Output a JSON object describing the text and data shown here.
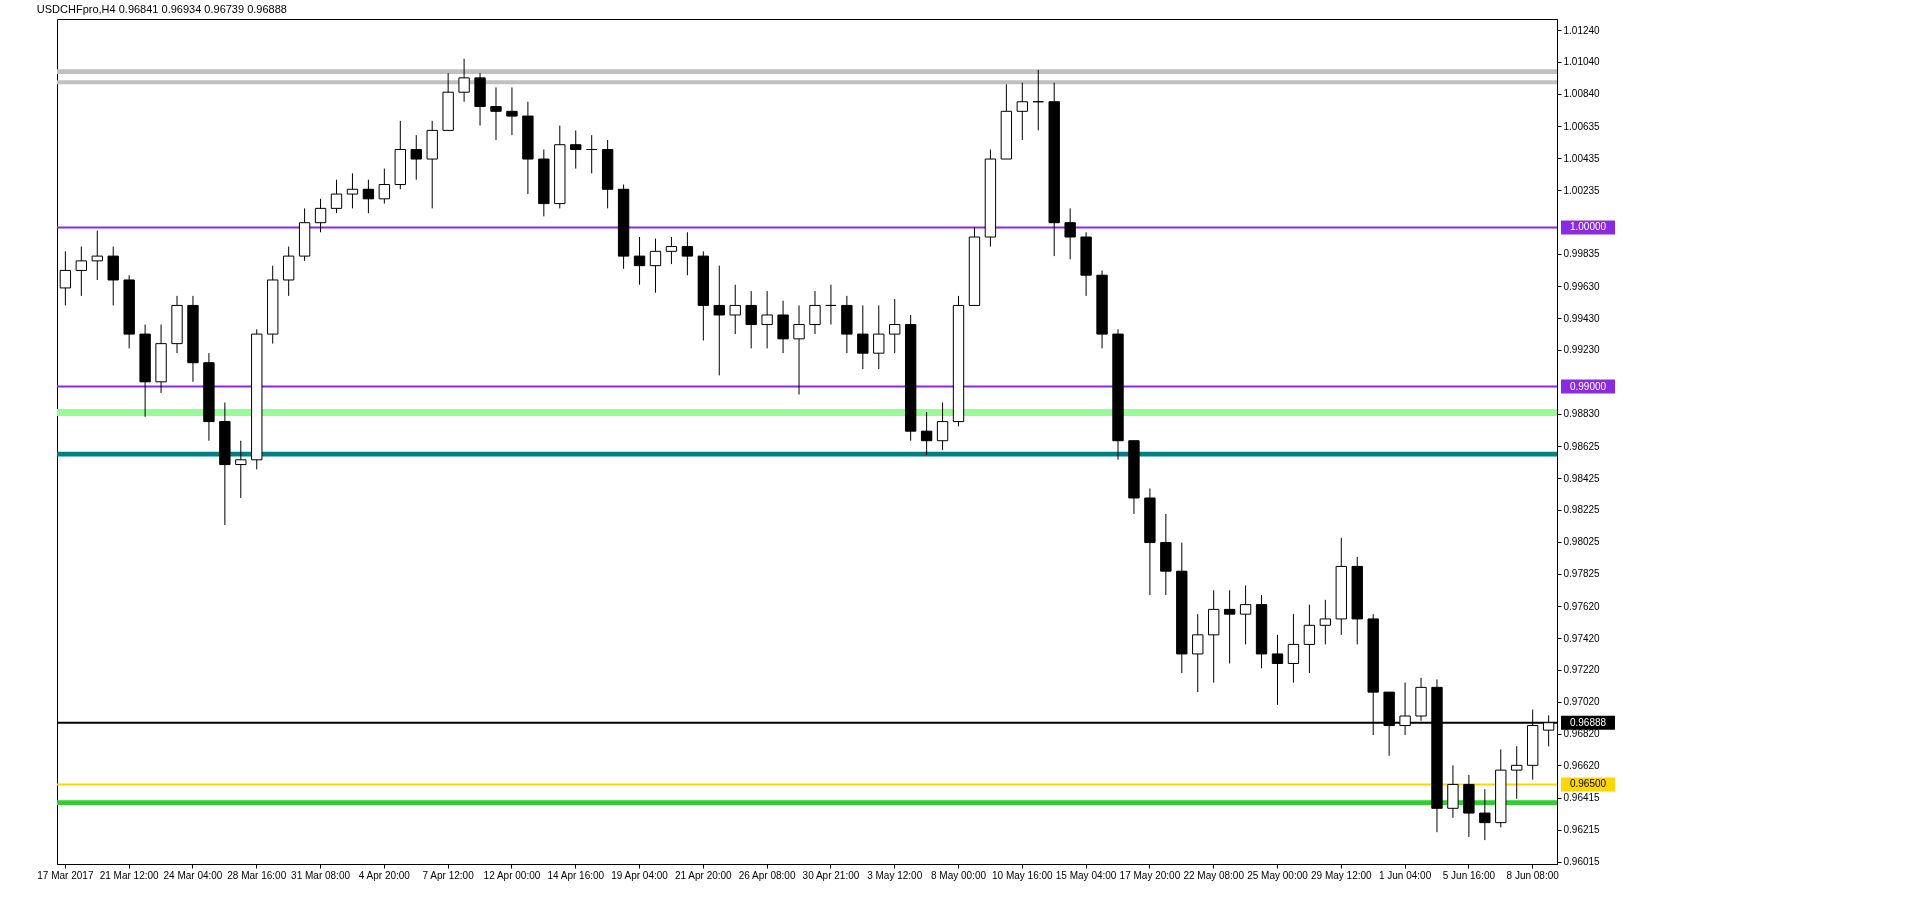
{
  "chart_data": {
    "type": "candlestick",
    "title": "USDCHFpro,H4  0.96841 0.96934 0.96739 0.96888",
    "categories": [
      "17 Mar 2017",
      null,
      null,
      null,
      "21 Mar 12:00",
      null,
      null,
      null,
      "24 Mar 04:00",
      null,
      null,
      null,
      "28 Mar 16:00",
      null,
      null,
      null,
      "31 Mar 08:00",
      null,
      null,
      null,
      "4 Apr 20:00",
      null,
      null,
      null,
      "7 Apr 12:00",
      null,
      null,
      null,
      "12 Apr 00:00",
      null,
      null,
      null,
      "14 Apr 16:00",
      null,
      null,
      null,
      "19 Apr 04:00",
      null,
      null,
      null,
      "21 Apr 20:00",
      null,
      null,
      null,
      "26 Apr 08:00",
      null,
      null,
      null,
      "30 Apr 21:00",
      null,
      null,
      null,
      "3 May 12:00",
      null,
      null,
      null,
      "8 May 00:00",
      null,
      null,
      null,
      "10 May 16:00",
      null,
      null,
      null,
      "15 May 04:00",
      null,
      null,
      null,
      "17 May 20:00",
      null,
      null,
      null,
      "22 May 08:00",
      null,
      null,
      null,
      "25 May 00:00",
      null,
      null,
      null,
      "29 May 12:00",
      null,
      null,
      null,
      "1 Jun 04:00",
      null,
      null,
      null,
      "5 Jun 16:00",
      null,
      null,
      null,
      "8 Jun 08:00",
      null
    ],
    "ohlc": [
      [
        0.9962,
        0.9985,
        0.9951,
        0.9973
      ],
      [
        0.9973,
        0.9988,
        0.9957,
        0.9979
      ],
      [
        0.9979,
        0.9998,
        0.9967,
        0.9982
      ],
      [
        0.9982,
        0.9988,
        0.9951,
        0.9967
      ],
      [
        0.9967,
        0.997,
        0.9924,
        0.9933
      ],
      [
        0.9933,
        0.9939,
        0.9881,
        0.9903
      ],
      [
        0.9903,
        0.9939,
        0.9896,
        0.9927
      ],
      [
        0.9927,
        0.9957,
        0.9921,
        0.9951
      ],
      [
        0.9951,
        0.9957,
        0.9903,
        0.9915
      ],
      [
        0.9915,
        0.9921,
        0.9866,
        0.9878
      ],
      [
        0.9878,
        0.989,
        0.9813,
        0.9851
      ],
      [
        0.9851,
        0.9866,
        0.983,
        0.9854
      ],
      [
        0.9854,
        0.9936,
        0.9848,
        0.9933
      ],
      [
        0.9933,
        0.9976,
        0.9927,
        0.9967
      ],
      [
        0.9967,
        0.9988,
        0.9957,
        0.9982
      ],
      [
        0.9982,
        1.0012,
        0.9979,
        1.0003
      ],
      [
        1.0003,
        1.0018,
        0.9997,
        1.0012
      ],
      [
        1.0012,
        1.003,
        1.0009,
        1.0021
      ],
      [
        1.0021,
        1.0034,
        1.0012,
        1.0024
      ],
      [
        1.0024,
        1.003,
        1.0009,
        1.0018
      ],
      [
        1.0018,
        1.0037,
        1.0015,
        1.0027
      ],
      [
        1.0027,
        1.0067,
        1.0024,
        1.0049
      ],
      [
        1.0049,
        1.0058,
        1.003,
        1.0043
      ],
      [
        1.0043,
        1.0067,
        1.0012,
        1.0061
      ],
      [
        1.0061,
        1.0097,
        1.0061,
        1.0085
      ],
      [
        1.0085,
        1.0106,
        1.0079,
        1.0094
      ],
      [
        1.0094,
        1.0097,
        1.0064,
        1.0076
      ],
      [
        1.0076,
        1.0088,
        1.0055,
        1.0073
      ],
      [
        1.0073,
        1.0088,
        1.0058,
        1.007
      ],
      [
        1.007,
        1.0079,
        1.0021,
        1.0043
      ],
      [
        1.0043,
        1.0049,
        1.0007,
        1.0015
      ],
      [
        1.0015,
        1.0064,
        1.0012,
        1.0052
      ],
      [
        1.0052,
        1.0061,
        1.0037,
        1.0049
      ],
      [
        1.0049,
        1.0058,
        1.0034,
        1.0049
      ],
      [
        1.0049,
        1.0055,
        1.0012,
        1.0024
      ],
      [
        1.0024,
        1.0027,
        0.9974,
        0.9982
      ],
      [
        0.9982,
        0.9994,
        0.9964,
        0.9976
      ],
      [
        0.9976,
        0.9993,
        0.9959,
        0.9985
      ],
      [
        0.9985,
        0.9994,
        0.9977,
        0.9988
      ],
      [
        0.9988,
        0.9997,
        0.997,
        0.9982
      ],
      [
        0.9982,
        0.9985,
        0.9929,
        0.9951
      ],
      [
        0.9951,
        0.9976,
        0.9907,
        0.9945
      ],
      [
        0.9945,
        0.9964,
        0.9933,
        0.9951
      ],
      [
        0.9951,
        0.996,
        0.9924,
        0.9939
      ],
      [
        0.9939,
        0.996,
        0.9924,
        0.9945
      ],
      [
        0.9945,
        0.9954,
        0.9921,
        0.993
      ],
      [
        0.993,
        0.9951,
        0.9895,
        0.9939
      ],
      [
        0.9939,
        0.996,
        0.9933,
        0.9951
      ],
      [
        0.9951,
        0.9964,
        0.9939,
        0.9951
      ],
      [
        0.9951,
        0.9957,
        0.9921,
        0.9933
      ],
      [
        0.9933,
        0.9951,
        0.9911,
        0.9921
      ],
      [
        0.9921,
        0.9951,
        0.9911,
        0.9933
      ],
      [
        0.9933,
        0.9955,
        0.9921,
        0.9939
      ],
      [
        0.9939,
        0.9945,
        0.9866,
        0.9872
      ],
      [
        0.9872,
        0.9884,
        0.9857,
        0.9866
      ],
      [
        0.9866,
        0.989,
        0.986,
        0.9878
      ],
      [
        0.9878,
        0.9957,
        0.9875,
        0.9951
      ],
      [
        0.9951,
        1.0,
        0.9951,
        0.9994
      ],
      [
        0.9994,
        1.0049,
        0.9988,
        1.0043
      ],
      [
        1.0043,
        1.009,
        1.0043,
        1.0073
      ],
      [
        1.0073,
        1.0091,
        1.0055,
        1.0079
      ],
      [
        1.0079,
        1.0099,
        1.0061,
        1.0079
      ],
      [
        1.0079,
        1.0091,
        0.9982,
        1.0003
      ],
      [
        1.0003,
        1.0012,
        0.998,
        0.9994
      ],
      [
        0.9994,
        0.9997,
        0.9957,
        0.997
      ],
      [
        0.997,
        0.9973,
        0.9924,
        0.9933
      ],
      [
        0.9933,
        0.9936,
        0.9854,
        0.9866
      ],
      [
        0.9866,
        0.9866,
        0.982,
        0.983
      ],
      [
        0.983,
        0.9836,
        0.9769,
        0.9802
      ],
      [
        0.9802,
        0.982,
        0.9769,
        0.9784
      ],
      [
        0.9784,
        0.9802,
        0.972,
        0.9732
      ],
      [
        0.9732,
        0.9757,
        0.9708,
        0.9744
      ],
      [
        0.9744,
        0.9772,
        0.9714,
        0.976
      ],
      [
        0.976,
        0.9772,
        0.9726,
        0.9757
      ],
      [
        0.9757,
        0.9775,
        0.9738,
        0.9763
      ],
      [
        0.9763,
        0.9769,
        0.9723,
        0.9732
      ],
      [
        0.9732,
        0.9744,
        0.97,
        0.9726
      ],
      [
        0.9726,
        0.9757,
        0.9714,
        0.9738
      ],
      [
        0.9738,
        0.9763,
        0.972,
        0.975
      ],
      [
        0.975,
        0.9766,
        0.9738,
        0.9754
      ],
      [
        0.9754,
        0.9805,
        0.9744,
        0.9787
      ],
      [
        0.9787,
        0.9793,
        0.9738,
        0.9754
      ],
      [
        0.9754,
        0.9757,
        0.9681,
        0.9708
      ],
      [
        0.9708,
        0.9708,
        0.9668,
        0.9687
      ],
      [
        0.9687,
        0.9714,
        0.9681,
        0.9693
      ],
      [
        0.9693,
        0.9717,
        0.969,
        0.9711
      ],
      [
        0.9711,
        0.9716,
        0.962,
        0.9635
      ],
      [
        0.9635,
        0.9662,
        0.9629,
        0.965
      ],
      [
        0.965,
        0.9656,
        0.9617,
        0.9632
      ],
      [
        0.9632,
        0.9647,
        0.9615,
        0.9626
      ],
      [
        0.9626,
        0.9672,
        0.9623,
        0.9659
      ],
      [
        0.9659,
        0.9674,
        0.9641,
        0.9662
      ],
      [
        0.9662,
        0.9697,
        0.9653,
        0.9687
      ],
      [
        0.96841,
        0.96934,
        0.96739,
        0.96888
      ]
    ],
    "ylim": [
      0.96,
      1.0131
    ],
    "yticks": [
      {
        "value": 1.0124,
        "label": "1.01240"
      },
      {
        "value": 1.0104,
        "label": "1.01040"
      },
      {
        "value": 1.0084,
        "label": "1.00840"
      },
      1.00635,
      1.00435,
      1.00235,
      0.99835,
      {
        "value": 0.9963,
        "label": "0.99630"
      },
      {
        "value": 0.9943,
        "label": "0.99430"
      },
      {
        "value": 0.9923,
        "label": "0.99230"
      },
      {
        "value": 0.9883,
        "label": "0.98830"
      },
      0.98625,
      0.98425,
      0.98225,
      0.98025,
      0.97825,
      {
        "value": 0.9762,
        "label": "0.97620"
      },
      {
        "value": 0.9742,
        "label": "0.97420"
      },
      {
        "value": 0.9722,
        "label": "0.97220"
      },
      {
        "value": 0.9702,
        "label": "0.97020"
      },
      {
        "value": 0.9682,
        "label": "0.96820"
      },
      {
        "value": 0.9662,
        "label": "0.96620"
      },
      0.96415,
      0.96215,
      0.96015
    ],
    "bands": [
      {
        "axis": "y",
        "from": 1.00965,
        "to": 1.00995,
        "color": "#c0c0c0"
      },
      {
        "axis": "y",
        "from": 1.009,
        "to": 1.00925,
        "color": "#c0c0c0"
      },
      {
        "axis": "y",
        "from": 0.98815,
        "to": 0.9886,
        "color": "#98fb98"
      },
      {
        "axis": "y",
        "from": 0.9856,
        "to": 0.9859,
        "color": "#008080"
      },
      {
        "axis": "y",
        "from": 0.9637,
        "to": 0.964,
        "color": "#32cd32"
      }
    ],
    "ref_lines": [
      {
        "axis": "y",
        "value": 1.0,
        "label": "1.00000",
        "color": "#8a2be2"
      },
      {
        "axis": "y",
        "value": 0.99,
        "label": "0.99000",
        "color": "#8a2be2"
      },
      {
        "axis": "y",
        "value": 0.965,
        "label": "0.96500",
        "color": "#ffd700"
      },
      {
        "axis": "y",
        "value": 0.96888,
        "label": "0.96888",
        "color": "#000000"
      }
    ]
  }
}
